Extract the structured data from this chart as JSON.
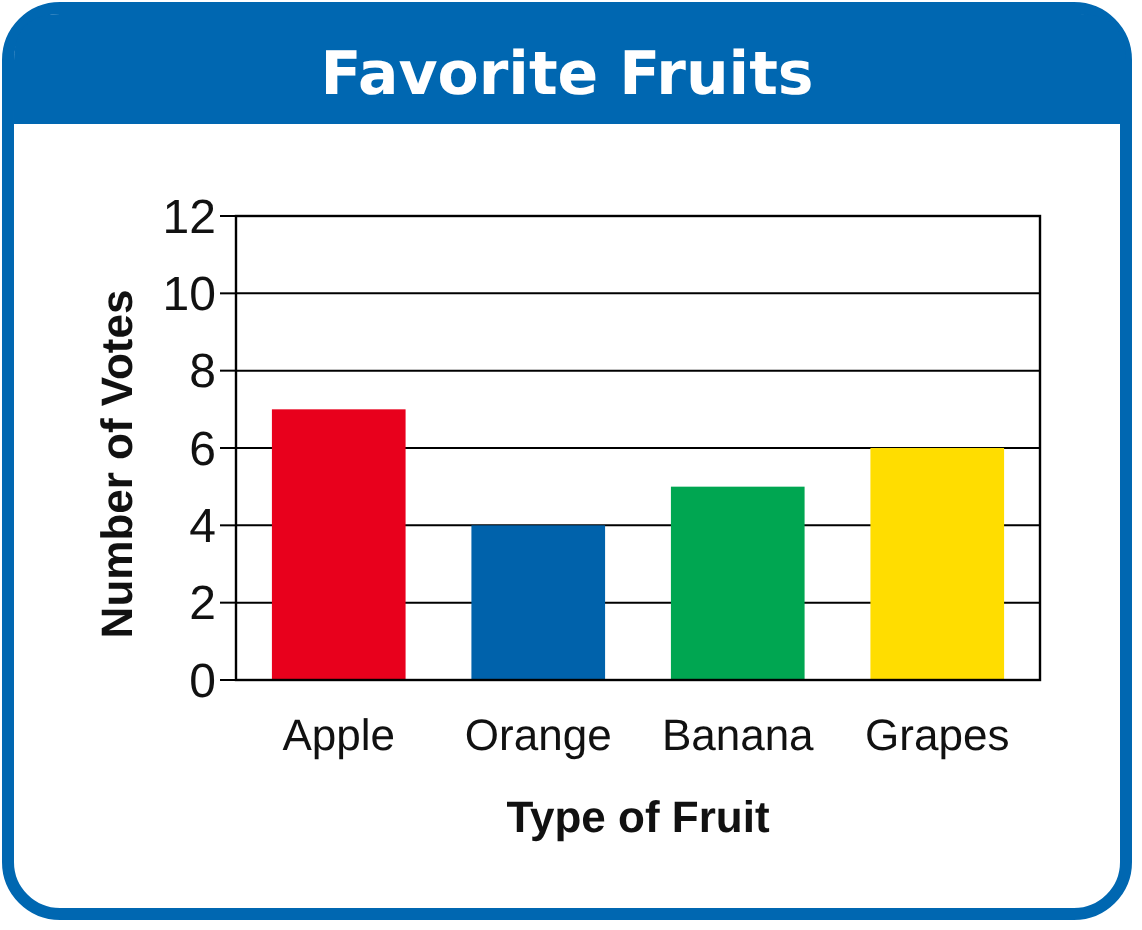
{
  "chart_data": {
    "type": "bar",
    "title": "Favorite Fruits",
    "xlabel": "Type of Fruit",
    "ylabel": "Number of Votes",
    "categories": [
      "Apple",
      "Orange",
      "Banana",
      "Grapes"
    ],
    "values": [
      7,
      4,
      5,
      6
    ],
    "colors": [
      "#e8001c",
      "#0062ab",
      "#00a651",
      "#ffdd00"
    ],
    "ylim": [
      0,
      12
    ],
    "yticks": [
      0,
      2,
      4,
      6,
      8,
      10,
      12
    ],
    "grid": "y"
  }
}
